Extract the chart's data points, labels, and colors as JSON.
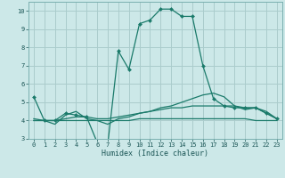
{
  "xlabel": "Humidex (Indice chaleur)",
  "background_color": "#cce8e8",
  "grid_color": "#aacccc",
  "line_color": "#1a7a6a",
  "xlim": [
    -0.5,
    23.5
  ],
  "ylim": [
    3,
    10.5
  ],
  "yticks": [
    3,
    4,
    5,
    6,
    7,
    8,
    9,
    10
  ],
  "xticks": [
    0,
    1,
    2,
    3,
    4,
    5,
    6,
    7,
    8,
    9,
    10,
    11,
    12,
    13,
    14,
    15,
    16,
    17,
    18,
    19,
    20,
    21,
    22,
    23
  ],
  "series": [
    {
      "x": [
        0,
        1,
        2,
        3,
        4,
        5,
        6,
        7,
        8,
        9,
        10,
        11,
        12,
        13,
        14,
        15,
        16,
        17,
        18,
        19,
        20,
        21,
        22,
        23
      ],
      "y": [
        5.3,
        4.0,
        4.0,
        4.4,
        4.3,
        4.2,
        2.8,
        2.7,
        7.8,
        6.8,
        9.3,
        9.5,
        10.1,
        10.1,
        9.7,
        9.7,
        7.0,
        5.2,
        4.8,
        4.7,
        4.7,
        4.7,
        4.4,
        4.1
      ],
      "marker": "D",
      "markersize": 2.0,
      "linewidth": 0.9
    },
    {
      "x": [
        0,
        1,
        2,
        3,
        4,
        5,
        6,
        7,
        8,
        9,
        10,
        11,
        12,
        13,
        14,
        15,
        16,
        17,
        18,
        19,
        20,
        21,
        22,
        23
      ],
      "y": [
        4.1,
        4.0,
        3.8,
        4.3,
        4.5,
        4.1,
        4.0,
        3.8,
        4.1,
        4.2,
        4.4,
        4.5,
        4.7,
        4.8,
        5.0,
        5.2,
        5.4,
        5.5,
        5.3,
        4.8,
        4.6,
        4.7,
        4.5,
        4.1
      ],
      "marker": null,
      "markersize": 0,
      "linewidth": 0.9
    },
    {
      "x": [
        0,
        1,
        2,
        3,
        4,
        5,
        6,
        7,
        8,
        9,
        10,
        11,
        12,
        13,
        14,
        15,
        16,
        17,
        18,
        19,
        20,
        21,
        22,
        23
      ],
      "y": [
        4.0,
        4.0,
        4.0,
        4.1,
        4.2,
        4.2,
        4.1,
        4.1,
        4.2,
        4.3,
        4.4,
        4.5,
        4.6,
        4.7,
        4.7,
        4.8,
        4.8,
        4.8,
        4.8,
        4.8,
        4.7,
        4.7,
        4.4,
        4.1
      ],
      "marker": null,
      "markersize": 0,
      "linewidth": 0.9
    },
    {
      "x": [
        0,
        1,
        2,
        3,
        4,
        5,
        6,
        7,
        8,
        9,
        10,
        11,
        12,
        13,
        14,
        15,
        16,
        17,
        18,
        19,
        20,
        21,
        22,
        23
      ],
      "y": [
        4.0,
        4.0,
        4.0,
        4.0,
        4.0,
        4.0,
        4.0,
        4.0,
        4.0,
        4.0,
        4.1,
        4.1,
        4.1,
        4.1,
        4.1,
        4.1,
        4.1,
        4.1,
        4.1,
        4.1,
        4.1,
        4.0,
        4.0,
        4.0
      ],
      "marker": null,
      "markersize": 0,
      "linewidth": 0.9
    }
  ]
}
